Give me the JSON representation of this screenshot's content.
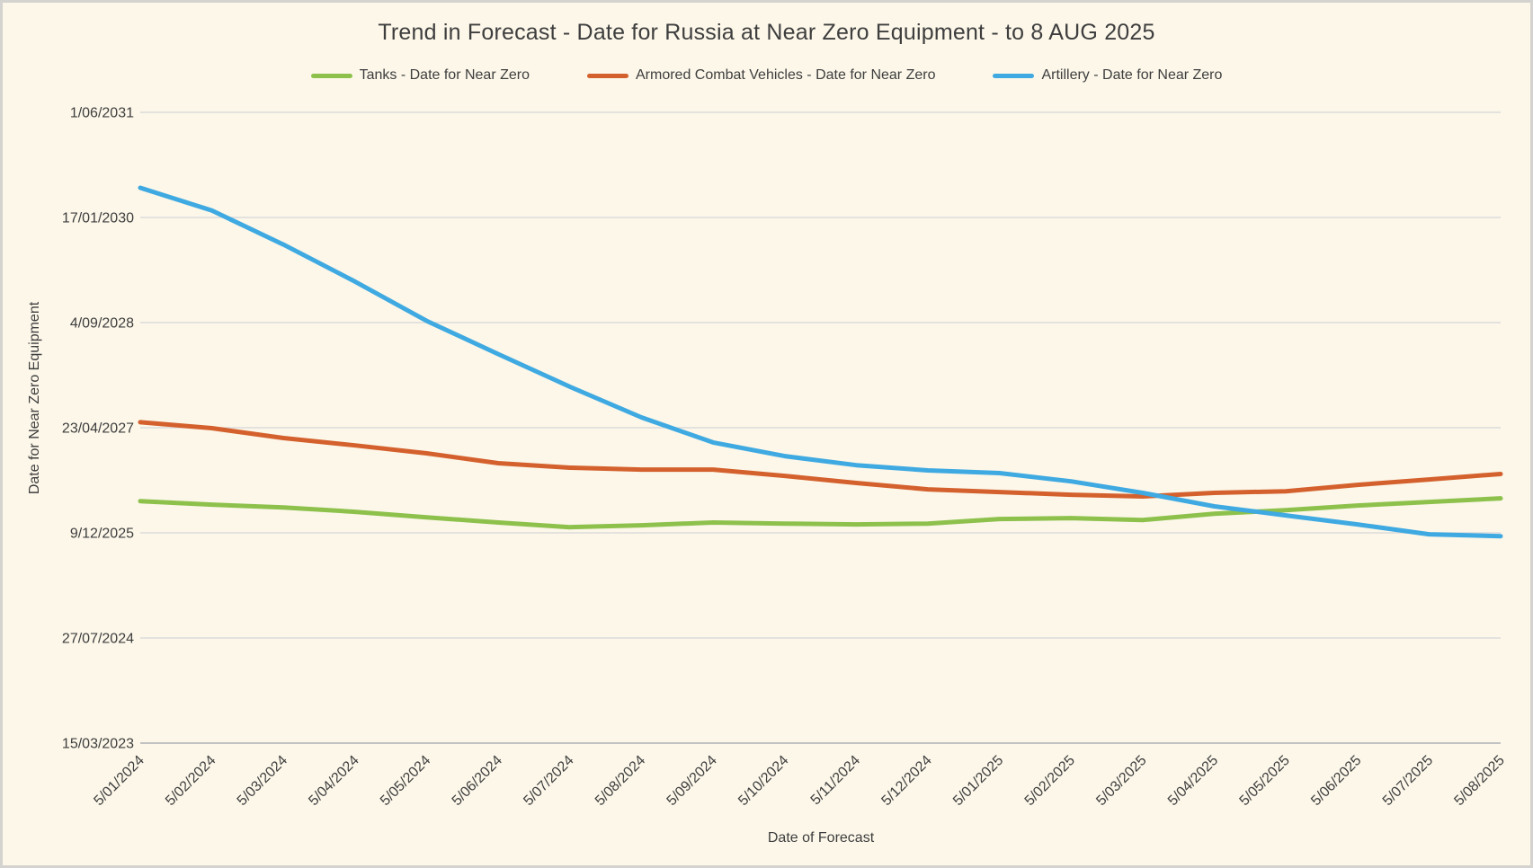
{
  "colors": {
    "background": "#FCF7E9",
    "border": "#D5D3D0",
    "grid": "#DCDCDC",
    "axis_line": "#C2C2C2",
    "text": "#3E3E3E"
  },
  "chart_data": {
    "type": "line",
    "title": "Trend in Forecast - Date for Russia at Near Zero Equipment - to 8 AUG 2025",
    "xlabel": "Date of Forecast",
    "ylabel": "Date for Near Zero Equipment",
    "legend_position": "top",
    "grid": "horizontal",
    "y_axis_kind": "date",
    "ylim": [
      "15/03/2023",
      "1/06/2031"
    ],
    "y_ticks": [
      "1/06/2031",
      "17/01/2030",
      "4/09/2028",
      "23/04/2027",
      "9/12/2025",
      "27/07/2024",
      "15/03/2023"
    ],
    "x": [
      "5/01/2024",
      "5/02/2024",
      "5/03/2024",
      "5/04/2024",
      "5/05/2024",
      "5/06/2024",
      "5/07/2024",
      "5/08/2024",
      "5/09/2024",
      "5/10/2024",
      "5/11/2024",
      "5/12/2024",
      "5/01/2025",
      "5/02/2025",
      "5/03/2025",
      "5/04/2025",
      "5/05/2025",
      "5/06/2025",
      "5/07/2025",
      "5/08/2025"
    ],
    "series": [
      {
        "key": "tanks",
        "name": "Tanks - Date for Near Zero",
        "color": "#8DC14C",
        "values": [
          "9/05/2026",
          "22/04/2026",
          "9/04/2026",
          "19/03/2026",
          "21/02/2026",
          "27/01/2026",
          "5/01/2026",
          "14/01/2026",
          "27/01/2026",
          "22/01/2026",
          "18/01/2026",
          "22/01/2026",
          "13/02/2026",
          "17/02/2026",
          "8/02/2026",
          "10/03/2026",
          "27/03/2026",
          "18/04/2026",
          "5/05/2026",
          "22/05/2026"
        ]
      },
      {
        "key": "armored-combat-vehicles",
        "name": "Armored Combat Vehicles - Date for Near Zero",
        "color": "#D4612D",
        "values": [
          "19/05/2027",
          "21/04/2027",
          "5/03/2027",
          "29/01/2027",
          "22/12/2026",
          "5/11/2026",
          "15/10/2026",
          "6/10/2026",
          "6/10/2026",
          "6/09/2026",
          "3/08/2026",
          "4/07/2026",
          "21/06/2026",
          "8/06/2026",
          "31/05/2026",
          "17/06/2026",
          "25/06/2026",
          "25/07/2026",
          "20/08/2026",
          "15/09/2026"
        ]
      },
      {
        "key": "artillery",
        "name": "Artillery - Date for Near Zero",
        "color": "#3FA9E1",
        "values": [
          "7/06/2030",
          "19/02/2030",
          "10/09/2029",
          "18/03/2029",
          "12/09/2028",
          "7/04/2028",
          "4/11/2027",
          "11/06/2027",
          "12/02/2027",
          "9/12/2026",
          "27/10/2026",
          "2/10/2026",
          "19/09/2026",
          "11/08/2026",
          "17/06/2026",
          "14/04/2026",
          "2/03/2026",
          "18/01/2026",
          "2/12/2025",
          "23/11/2025"
        ]
      }
    ]
  }
}
